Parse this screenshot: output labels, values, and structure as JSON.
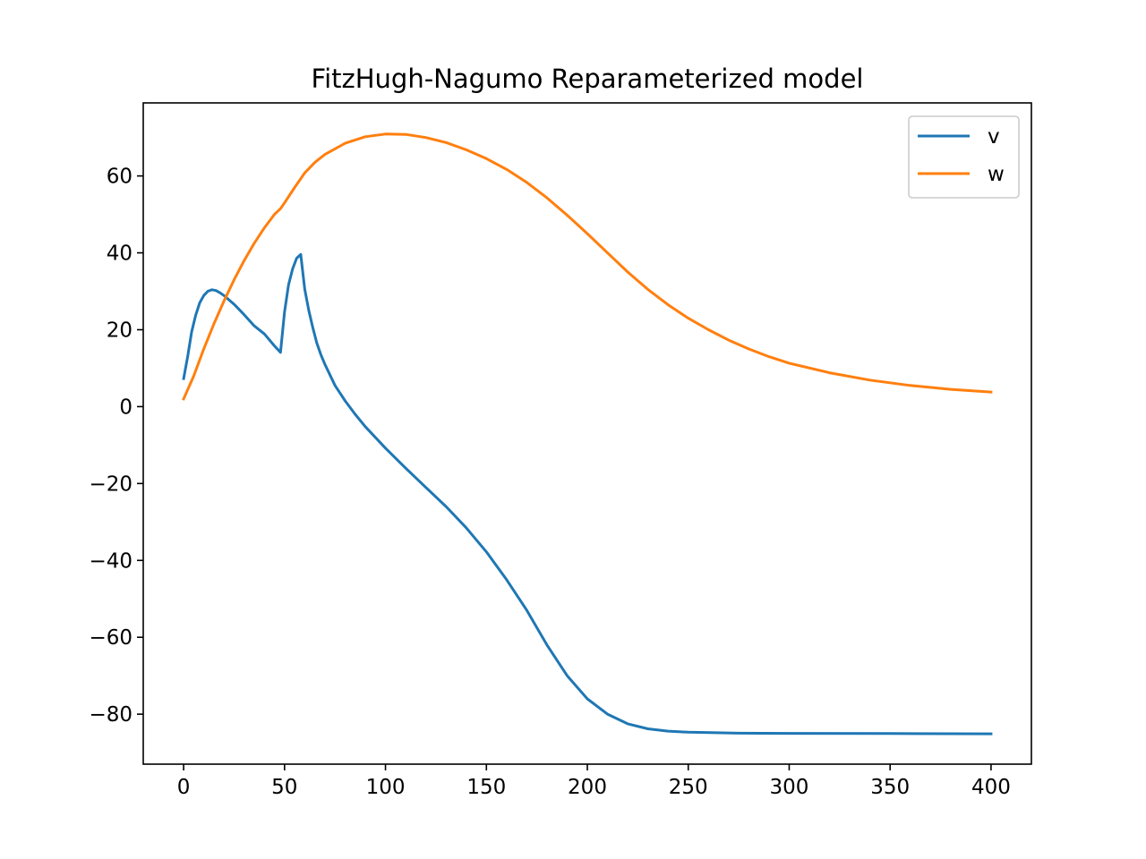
{
  "chart_data": {
    "type": "line",
    "title": "FitzHugh-Nagumo Reparameterized model",
    "xlabel": "",
    "ylabel": "",
    "xlim": [
      -20,
      420
    ],
    "ylim": [
      -93,
      79
    ],
    "xticks": [
      0,
      50,
      100,
      150,
      200,
      250,
      300,
      350,
      400
    ],
    "yticks": [
      -80,
      -60,
      -40,
      -20,
      0,
      20,
      40,
      60
    ],
    "xtick_labels": [
      "0",
      "50",
      "100",
      "150",
      "200",
      "250",
      "300",
      "350",
      "400"
    ],
    "ytick_labels": [
      "−80",
      "−60",
      "−40",
      "−20",
      "0",
      "20",
      "40",
      "60"
    ],
    "grid": false,
    "legend": "top-right",
    "series": [
      {
        "name": "v",
        "color": "#1f77b4",
        "points": [
          [
            0,
            7.3
          ],
          [
            2,
            13.0
          ],
          [
            4,
            19.5
          ],
          [
            6,
            23.8
          ],
          [
            8,
            27.0
          ],
          [
            10,
            28.9
          ],
          [
            12,
            30.0
          ],
          [
            14,
            30.4
          ],
          [
            16,
            30.2
          ],
          [
            18,
            29.6
          ],
          [
            20,
            28.9
          ],
          [
            25,
            26.6
          ],
          [
            30,
            23.9
          ],
          [
            35,
            21.0
          ],
          [
            40,
            18.9
          ],
          [
            45,
            15.8
          ],
          [
            48,
            14.1
          ],
          [
            50,
            24.6
          ],
          [
            52,
            31.7
          ],
          [
            54,
            35.8
          ],
          [
            56,
            38.6
          ],
          [
            58,
            39.6
          ],
          [
            60,
            30.5
          ],
          [
            62,
            25.0
          ],
          [
            64,
            20.5
          ],
          [
            66,
            16.5
          ],
          [
            68,
            13.5
          ],
          [
            70,
            11.0
          ],
          [
            75,
            5.5
          ],
          [
            80,
            1.5
          ],
          [
            85,
            -2.0
          ],
          [
            90,
            -5.2
          ],
          [
            100,
            -10.8
          ],
          [
            110,
            -16.0
          ],
          [
            120,
            -21.0
          ],
          [
            130,
            -26.0
          ],
          [
            140,
            -31.5
          ],
          [
            150,
            -37.8
          ],
          [
            160,
            -45.0
          ],
          [
            170,
            -53.0
          ],
          [
            180,
            -62.0
          ],
          [
            190,
            -70.0
          ],
          [
            200,
            -76.0
          ],
          [
            210,
            -80.0
          ],
          [
            220,
            -82.5
          ],
          [
            230,
            -83.8
          ],
          [
            240,
            -84.4
          ],
          [
            250,
            -84.7
          ],
          [
            275,
            -84.95
          ],
          [
            300,
            -85.0
          ],
          [
            350,
            -85.05
          ],
          [
            400,
            -85.1
          ]
        ]
      },
      {
        "name": "w",
        "color": "#ff7f0e",
        "points": [
          [
            0,
            2.0
          ],
          [
            5,
            8.0
          ],
          [
            10,
            15.0
          ],
          [
            15,
            21.5
          ],
          [
            20,
            27.5
          ],
          [
            25,
            33.0
          ],
          [
            30,
            38.0
          ],
          [
            35,
            42.5
          ],
          [
            40,
            46.5
          ],
          [
            45,
            50.0
          ],
          [
            48,
            51.5
          ],
          [
            50,
            53.0
          ],
          [
            55,
            57.0
          ],
          [
            60,
            60.8
          ],
          [
            65,
            63.5
          ],
          [
            70,
            65.6
          ],
          [
            80,
            68.5
          ],
          [
            90,
            70.2
          ],
          [
            100,
            70.9
          ],
          [
            110,
            70.8
          ],
          [
            120,
            70.0
          ],
          [
            130,
            68.7
          ],
          [
            140,
            66.8
          ],
          [
            150,
            64.5
          ],
          [
            160,
            61.7
          ],
          [
            170,
            58.3
          ],
          [
            180,
            54.3
          ],
          [
            190,
            49.8
          ],
          [
            200,
            45.0
          ],
          [
            210,
            40.0
          ],
          [
            220,
            35.0
          ],
          [
            230,
            30.5
          ],
          [
            240,
            26.5
          ],
          [
            250,
            23.0
          ],
          [
            260,
            20.0
          ],
          [
            270,
            17.3
          ],
          [
            280,
            15.0
          ],
          [
            290,
            13.0
          ],
          [
            300,
            11.3
          ],
          [
            320,
            8.8
          ],
          [
            340,
            6.9
          ],
          [
            360,
            5.5
          ],
          [
            380,
            4.5
          ],
          [
            400,
            3.8
          ]
        ]
      }
    ]
  }
}
